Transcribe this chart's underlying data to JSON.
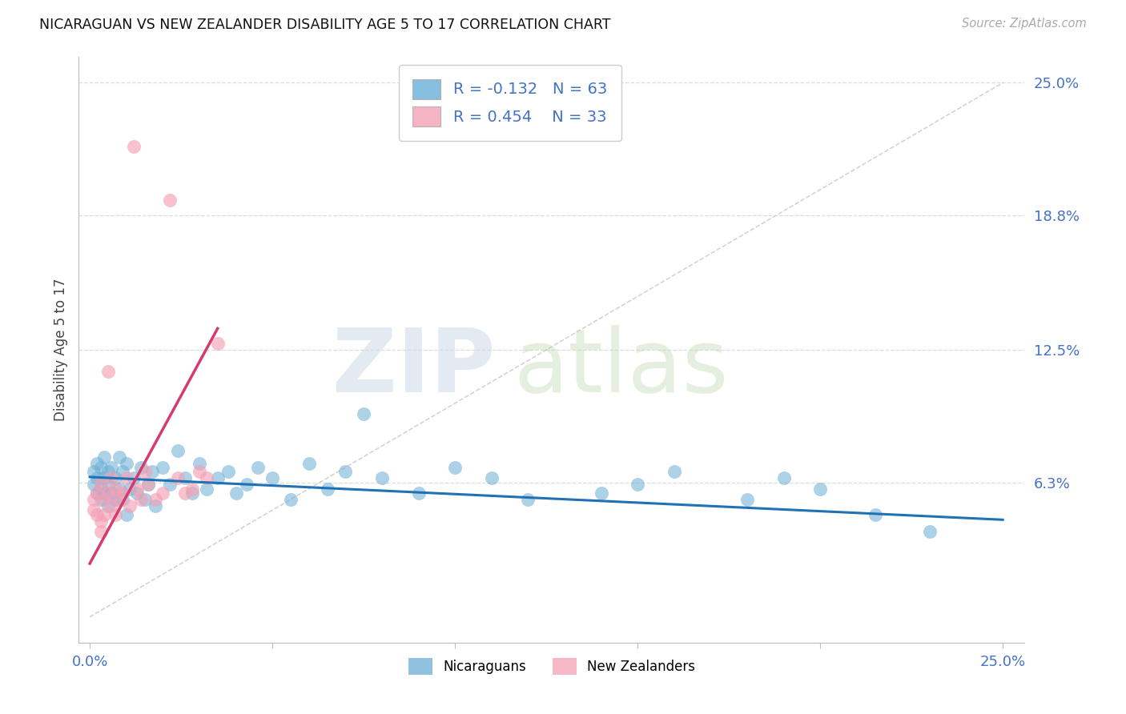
{
  "title": "NICARAGUAN VS NEW ZEALANDER DISABILITY AGE 5 TO 17 CORRELATION CHART",
  "source": "Source: ZipAtlas.com",
  "ylabel": "Disability Age 5 to 17",
  "xmin": 0.0,
  "xmax": 0.25,
  "ymin": -0.012,
  "ymax": 0.262,
  "blue_color": "#6baed6",
  "pink_color": "#f4a0b5",
  "line_blue": "#2171b5",
  "line_pink": "#d63b6e",
  "diag_color": "#cccccc",
  "grid_color": "#dddddd",
  "r_nicaraguan": -0.132,
  "n_nicaraguan": 63,
  "r_nz": 0.454,
  "n_nz": 33,
  "nic_x": [
    0.001,
    0.001,
    0.002,
    0.002,
    0.002,
    0.003,
    0.003,
    0.003,
    0.004,
    0.004,
    0.004,
    0.005,
    0.005,
    0.005,
    0.006,
    0.006,
    0.007,
    0.007,
    0.008,
    0.008,
    0.009,
    0.009,
    0.01,
    0.01,
    0.011,
    0.012,
    0.013,
    0.014,
    0.015,
    0.016,
    0.017,
    0.018,
    0.02,
    0.022,
    0.024,
    0.026,
    0.028,
    0.03,
    0.032,
    0.035,
    0.038,
    0.04,
    0.043,
    0.046,
    0.05,
    0.055,
    0.06,
    0.065,
    0.07,
    0.075,
    0.08,
    0.09,
    0.1,
    0.11,
    0.12,
    0.14,
    0.15,
    0.16,
    0.18,
    0.19,
    0.2,
    0.215,
    0.23
  ],
  "nic_y": [
    0.062,
    0.068,
    0.058,
    0.065,
    0.072,
    0.06,
    0.055,
    0.07,
    0.058,
    0.065,
    0.075,
    0.062,
    0.068,
    0.052,
    0.058,
    0.07,
    0.055,
    0.065,
    0.06,
    0.075,
    0.055,
    0.068,
    0.048,
    0.072,
    0.06,
    0.065,
    0.058,
    0.07,
    0.055,
    0.062,
    0.068,
    0.052,
    0.07,
    0.062,
    0.078,
    0.065,
    0.058,
    0.072,
    0.06,
    0.065,
    0.068,
    0.058,
    0.062,
    0.07,
    0.065,
    0.055,
    0.072,
    0.06,
    0.068,
    0.095,
    0.065,
    0.058,
    0.07,
    0.065,
    0.055,
    0.058,
    0.062,
    0.068,
    0.055,
    0.065,
    0.06,
    0.048,
    0.04
  ],
  "nz_x": [
    0.001,
    0.001,
    0.002,
    0.002,
    0.003,
    0.003,
    0.003,
    0.004,
    0.004,
    0.005,
    0.005,
    0.006,
    0.006,
    0.007,
    0.007,
    0.008,
    0.009,
    0.01,
    0.011,
    0.012,
    0.013,
    0.014,
    0.015,
    0.016,
    0.018,
    0.02,
    0.022,
    0.024,
    0.026,
    0.028,
    0.03,
    0.032,
    0.035
  ],
  "nz_y": [
    0.055,
    0.05,
    0.048,
    0.058,
    0.045,
    0.062,
    0.04,
    0.055,
    0.048,
    0.115,
    0.058,
    0.052,
    0.065,
    0.06,
    0.048,
    0.055,
    0.058,
    0.065,
    0.052,
    0.22,
    0.06,
    0.055,
    0.068,
    0.062,
    0.055,
    0.058,
    0.195,
    0.065,
    0.058,
    0.06,
    0.068,
    0.065,
    0.128
  ],
  "blue_line_x0": 0.0,
  "blue_line_x1": 0.25,
  "blue_line_y0": 0.0655,
  "blue_line_y1": 0.0455,
  "pink_line_x0": 0.0,
  "pink_line_x1": 0.035,
  "pink_line_y0": 0.025,
  "pink_line_y1": 0.135
}
